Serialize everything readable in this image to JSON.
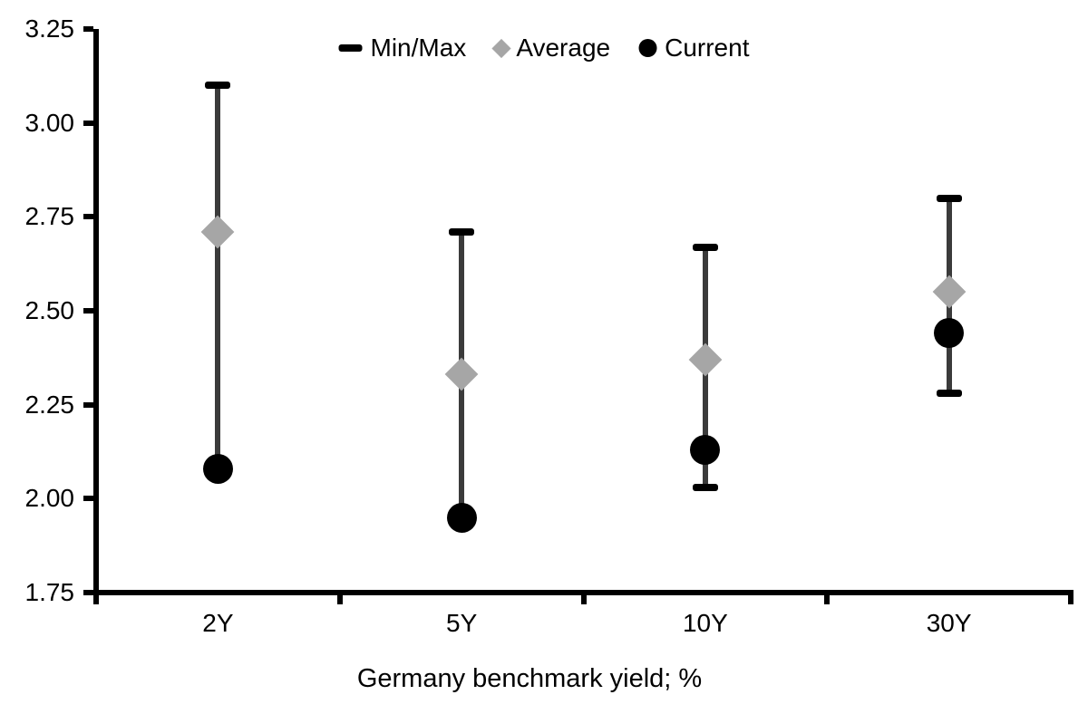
{
  "chart_data": {
    "type": "scatter",
    "subtype": "min-max-range-with-markers",
    "categories": [
      "2Y",
      "5Y",
      "10Y",
      "30Y"
    ],
    "series": [
      {
        "name": "Min/Max",
        "role": "range",
        "marker": "dash",
        "min": [
          2.08,
          1.95,
          2.03,
          2.28
        ],
        "max": [
          3.1,
          2.71,
          2.67,
          2.8
        ]
      },
      {
        "name": "Average",
        "role": "marker",
        "marker": "diamond",
        "values": [
          2.71,
          2.33,
          2.37,
          2.55
        ]
      },
      {
        "name": "Current",
        "role": "marker",
        "marker": "circle",
        "values": [
          2.08,
          1.95,
          2.13,
          2.44
        ]
      }
    ],
    "xlabel": "Germany benchmark yield; %",
    "ylabel": "",
    "ylim": [
      1.75,
      3.25
    ],
    "y_tick_step": 0.25,
    "y_ticks": [
      "3.25",
      "3.00",
      "2.75",
      "2.50",
      "2.25",
      "2.00",
      "1.75"
    ],
    "grid": false,
    "legend_position": "top",
    "legend": [
      "Min/Max",
      "Average",
      "Current"
    ],
    "colors": {
      "range_cap": "#000000",
      "range_line": "#3b3b3b",
      "average_marker": "#a6a6a6",
      "current_marker": "#000000",
      "axis": "#000000",
      "text": "#000000",
      "background": "#ffffff"
    }
  }
}
